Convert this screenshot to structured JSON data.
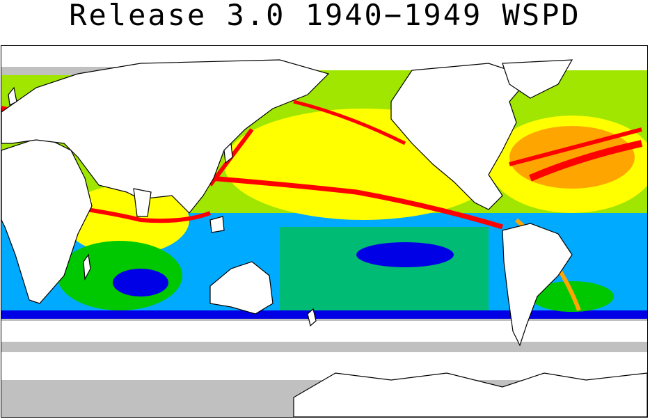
{
  "title": "Release 3.0 1940−1949 WSPD",
  "map": {
    "variable": "WSPD",
    "period": "1940−1949",
    "release": "3.0",
    "projection": "equirectangular world map",
    "color_scale": {
      "absent": "#ffffff",
      "very_low": "#c0c0c0",
      "low": "#0000e6",
      "mid_low": "#00aaff",
      "medium": "#00c800",
      "mid_high": "#a0e600",
      "high": "#ffff00",
      "very_high": "#ffa500",
      "max": "#ff0000"
    },
    "land_color": "#ffffff",
    "coastline_color": "#000000"
  }
}
